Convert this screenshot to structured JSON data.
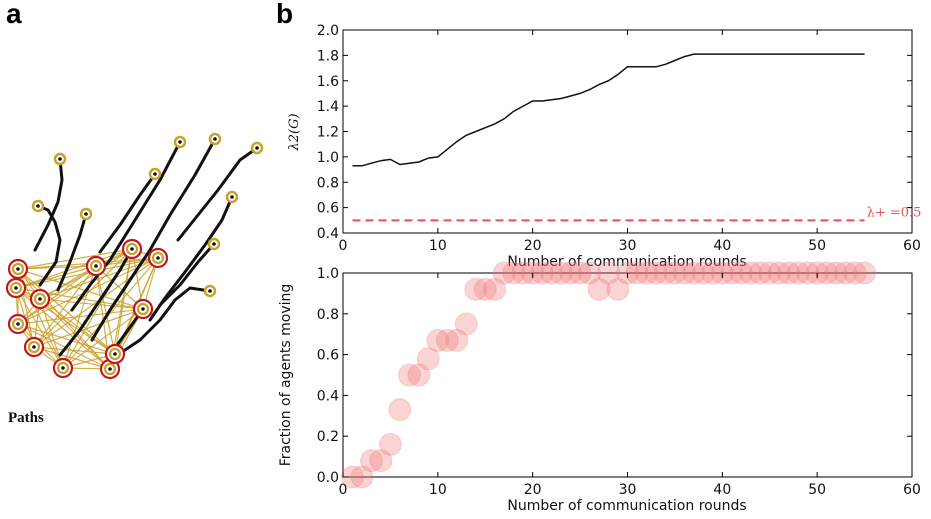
{
  "panel_a": {
    "letter": "a",
    "caption": "Paths",
    "colors": {
      "path": "#111111",
      "edge": "#c9a22a",
      "moving_agent": "#c9a22a",
      "stopped_ring": "#c4161c"
    },
    "moving_agents": [
      {
        "x": 60,
        "y": 159
      },
      {
        "x": 155,
        "y": 174
      },
      {
        "x": 180,
        "y": 142
      },
      {
        "x": 215,
        "y": 139
      },
      {
        "x": 257,
        "y": 148
      },
      {
        "x": 38,
        "y": 206
      },
      {
        "x": 86,
        "y": 214
      },
      {
        "x": 232,
        "y": 197
      },
      {
        "x": 214,
        "y": 244
      },
      {
        "x": 210,
        "y": 291
      }
    ],
    "stopped_agents": [
      {
        "x": 18,
        "y": 269
      },
      {
        "x": 16,
        "y": 288
      },
      {
        "x": 40,
        "y": 299
      },
      {
        "x": 96,
        "y": 266
      },
      {
        "x": 132,
        "y": 249
      },
      {
        "x": 158,
        "y": 258
      },
      {
        "x": 143,
        "y": 309
      },
      {
        "x": 18,
        "y": 324
      },
      {
        "x": 34,
        "y": 347
      },
      {
        "x": 63,
        "y": 368
      },
      {
        "x": 110,
        "y": 369
      },
      {
        "x": 115,
        "y": 354
      }
    ],
    "paths": [
      [
        [
          60,
          159
        ],
        [
          62,
          180
        ],
        [
          58,
          202
        ],
        [
          48,
          225
        ],
        [
          35,
          250
        ]
      ],
      [
        [
          155,
          174
        ],
        [
          140,
          195
        ],
        [
          120,
          225
        ],
        [
          100,
          252
        ]
      ],
      [
        [
          180,
          142
        ],
        [
          160,
          180
        ],
        [
          135,
          220
        ],
        [
          110,
          260
        ],
        [
          90,
          285
        ],
        [
          72,
          310
        ]
      ],
      [
        [
          215,
          139
        ],
        [
          195,
          175
        ],
        [
          170,
          215
        ],
        [
          150,
          250
        ],
        [
          130,
          280
        ],
        [
          110,
          310
        ],
        [
          92,
          340
        ]
      ],
      [
        [
          257,
          148
        ],
        [
          240,
          160
        ],
        [
          218,
          190
        ],
        [
          198,
          215
        ],
        [
          178,
          240
        ]
      ],
      [
        [
          38,
          206
        ],
        [
          48,
          210
        ],
        [
          55,
          222
        ],
        [
          60,
          240
        ],
        [
          56,
          262
        ],
        [
          40,
          285
        ]
      ],
      [
        [
          86,
          214
        ],
        [
          80,
          235
        ],
        [
          70,
          262
        ],
        [
          58,
          290
        ]
      ],
      [
        [
          232,
          197
        ],
        [
          222,
          220
        ],
        [
          205,
          245
        ],
        [
          185,
          272
        ],
        [
          165,
          298
        ],
        [
          150,
          320
        ]
      ],
      [
        [
          214,
          244
        ],
        [
          198,
          262
        ],
        [
          180,
          285
        ],
        [
          160,
          305
        ]
      ],
      [
        [
          210,
          291
        ],
        [
          190,
          288
        ],
        [
          175,
          300
        ],
        [
          160,
          320
        ],
        [
          140,
          340
        ],
        [
          122,
          352
        ]
      ],
      [
        [
          143,
          309
        ],
        [
          128,
          330
        ],
        [
          112,
          352
        ]
      ],
      [
        [
          132,
          249
        ],
        [
          120,
          270
        ],
        [
          100,
          300
        ],
        [
          80,
          330
        ],
        [
          60,
          355
        ]
      ]
    ]
  },
  "panel_b": {
    "letter": "b"
  },
  "chart_data": [
    {
      "type": "line",
      "x": [
        1,
        2,
        3,
        4,
        5,
        6,
        7,
        8,
        9,
        10,
        11,
        12,
        13,
        14,
        15,
        16,
        17,
        18,
        19,
        20,
        21,
        22,
        23,
        24,
        25,
        26,
        27,
        28,
        29,
        30,
        31,
        32,
        33,
        34,
        35,
        36,
        37,
        38,
        39,
        40,
        41,
        42,
        43,
        44,
        45,
        46,
        47,
        48,
        49,
        50,
        51,
        52,
        53,
        54,
        55
      ],
      "series": [
        {
          "values": [
            0.93,
            0.93,
            0.95,
            0.97,
            0.98,
            0.94,
            0.95,
            0.96,
            0.99,
            1.0,
            1.06,
            1.12,
            1.17,
            1.2,
            1.23,
            1.26,
            1.3,
            1.36,
            1.4,
            1.44,
            1.44,
            1.45,
            1.46,
            1.48,
            1.5,
            1.53,
            1.57,
            1.6,
            1.65,
            1.71,
            1.71,
            1.71,
            1.71,
            1.73,
            1.76,
            1.79,
            1.81,
            1.81,
            1.81,
            1.81,
            1.81,
            1.81,
            1.81,
            1.81,
            1.81,
            1.81,
            1.81,
            1.81,
            1.81,
            1.81,
            1.81,
            1.81,
            1.81,
            1.81,
            1.81
          ],
          "color": "#111111"
        }
      ],
      "threshold": {
        "value": 0.5,
        "label": "λ+ =0.5",
        "color": "#e85050",
        "style": "dashed"
      },
      "xlabel": "Number of communication rounds",
      "ylabel": "λ2(G)",
      "xlim": [
        0,
        60
      ],
      "ylim": [
        0.4,
        2.0
      ],
      "xticks": [
        "0",
        "10",
        "20",
        "30",
        "40",
        "50",
        "60"
      ],
      "yticks": [
        "0.4",
        "0.6",
        "0.8",
        "1.0",
        "1.2",
        "1.4",
        "1.6",
        "1.8",
        "2.0"
      ],
      "grid": false
    },
    {
      "type": "scatter",
      "x": [
        1,
        2,
        3,
        4,
        5,
        6,
        7,
        8,
        9,
        10,
        11,
        12,
        13,
        14,
        15,
        16,
        17,
        18,
        19,
        20,
        21,
        22,
        23,
        24,
        25,
        26,
        27,
        28,
        29,
        30,
        31,
        32,
        33,
        34,
        35,
        36,
        37,
        38,
        39,
        40,
        41,
        42,
        43,
        44,
        45,
        46,
        47,
        48,
        49,
        50,
        51,
        52,
        53,
        54,
        55
      ],
      "series": [
        {
          "values": [
            0.0,
            0.0,
            0.08,
            0.08,
            0.16,
            0.33,
            0.5,
            0.5,
            0.58,
            0.67,
            0.67,
            0.67,
            0.75,
            0.92,
            0.92,
            0.92,
            1.0,
            1.0,
            1.0,
            1.0,
            1.0,
            1.0,
            1.0,
            1.0,
            1.0,
            1.0,
            0.92,
            1.0,
            0.92,
            1.0,
            1.0,
            1.0,
            1.0,
            1.0,
            1.0,
            1.0,
            1.0,
            1.0,
            1.0,
            1.0,
            1.0,
            1.0,
            1.0,
            1.0,
            1.0,
            1.0,
            1.0,
            1.0,
            1.0,
            1.0,
            1.0,
            1.0,
            1.0,
            1.0,
            1.0
          ],
          "color": "#f07070"
        }
      ],
      "xlabel": "Number of communication rounds",
      "ylabel": "Fraction of agents moving",
      "xlim": [
        0,
        60
      ],
      "ylim": [
        0.0,
        1.0
      ],
      "xticks": [
        "0",
        "10",
        "20",
        "30",
        "40",
        "50",
        "60"
      ],
      "yticks": [
        "0.0",
        "0.2",
        "0.4",
        "0.6",
        "0.8",
        "1.0"
      ],
      "grid": false
    }
  ]
}
